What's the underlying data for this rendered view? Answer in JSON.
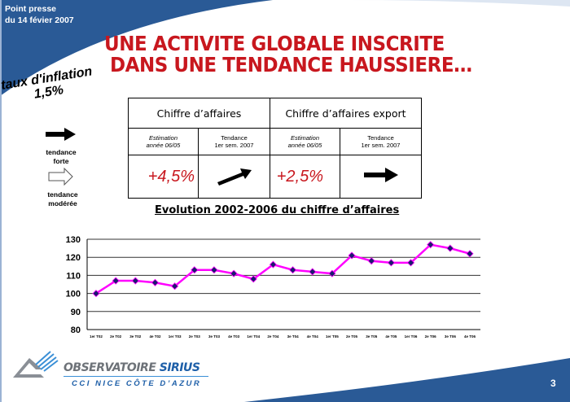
{
  "header": {
    "line1": "Point presse",
    "line2": "du 14 févier 2007"
  },
  "title": {
    "line1": "UNE ACTIVITE GLOBALE INSCRITE",
    "line2": "DANS UNE TENDANCE HAUSSIERE…"
  },
  "inflation": {
    "line1": "taux d'inflation",
    "line2": "1,5%"
  },
  "legend": [
    {
      "icon": "filled-arrow-right",
      "label1": "tendance",
      "label2": "forte"
    },
    {
      "icon": "outline-arrow-right",
      "label1": "tendance",
      "label2": "modérée"
    }
  ],
  "table": {
    "groups": [
      "Chiffre d’affaires",
      "Chiffre d’affaires export"
    ],
    "sub": [
      {
        "l1": "Estimation",
        "l2": "année 06/05"
      },
      {
        "l1": "Tendance",
        "l2": "1er sem. 2007"
      },
      {
        "l1": "Estimation",
        "l2": "année 06/05"
      },
      {
        "l1": "Tendance",
        "l2": "1er sem. 2007"
      }
    ],
    "values": [
      "+4,5%",
      "arrow-up-right",
      "+2,5%",
      "arrow-right"
    ]
  },
  "chart_data": {
    "type": "line",
    "title": "Evolution 2002-2006 du chiffre d’affaires",
    "categories": [
      "1er T02",
      "2e T02",
      "3e T02",
      "4e T02",
      "1er T03",
      "2e T03",
      "3e T03",
      "4e T03",
      "1er T04",
      "2e T04",
      "3e T04",
      "4e T04",
      "1er T05",
      "2e T05",
      "3e T05",
      "4e T05",
      "1er T06",
      "2e T06",
      "3e T06",
      "4e T06"
    ],
    "values": [
      100,
      107,
      107,
      106,
      104,
      113,
      113,
      111,
      108,
      116,
      113,
      112,
      111,
      121,
      118,
      117,
      117,
      127,
      125,
      122
    ],
    "ylim": [
      80,
      130
    ],
    "yticks": [
      80,
      90,
      100,
      110,
      120,
      130
    ],
    "grid": true,
    "line_color": "#ff00ff",
    "marker_color": "#1a1a6e"
  },
  "footer": {
    "logo_line1a": "OBSERVATOIRE",
    "logo_line1b": "SIRIUS",
    "logo_line2": "CCI NICE CÔTE D’AZUR",
    "page_number": "3"
  },
  "colors": {
    "brand_blue": "#2a5a96",
    "title_red": "#c8171e"
  }
}
